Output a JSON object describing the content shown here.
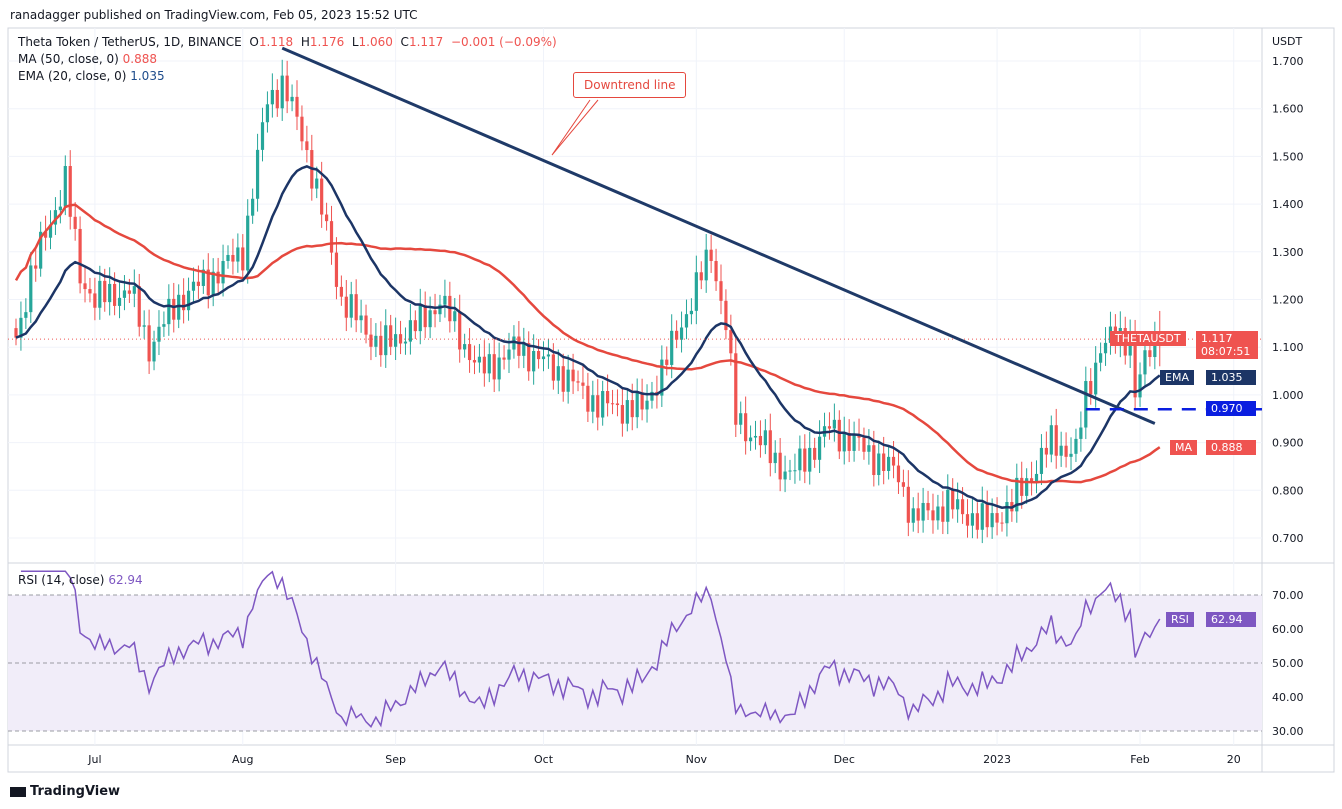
{
  "header": {
    "published": "ranadagger published on TradingView.com, Feb 05, 2023 15:52 UTC"
  },
  "legend": {
    "symbol": "Theta Token / TetherUS, 1D, BINANCE",
    "o_label": "O",
    "o": "1.118",
    "h_label": "H",
    "h": "1.176",
    "l_label": "L",
    "l": "1.060",
    "c_label": "C",
    "c": "1.117",
    "change": "−0.001 (−0.09%)",
    "ma_label": "MA (50, close, 0)",
    "ma_value": "0.888",
    "ema_label": "EMA (20, close, 0)",
    "ema_value": "1.035",
    "rsi_label": "RSI (14, close)",
    "rsi_value": "62.94"
  },
  "badges": {
    "symbol": "THETAUSDT",
    "price": "1.117",
    "countdown": "08:07:51",
    "ema": "EMA",
    "ema_value": "1.035",
    "level": "0.970",
    "ma": "MA",
    "ma_value": "0.888",
    "rsi": "RSI",
    "rsi_value": "62.94"
  },
  "annotation": "Downtrend line",
  "footer": {
    "brand": "TradingView"
  },
  "colors": {
    "up": "#26a69a",
    "down": "#ef5350",
    "ma": "#e5483e",
    "ema": "#1c3566",
    "trend": "#1f3a68",
    "rsi": "#7e57c2"
  },
  "chart_data": {
    "type": "candlestick",
    "title": "Theta Token / TetherUS, 1D, BINANCE",
    "y_unit": "USDT",
    "ylim": [
      0.65,
      1.75
    ],
    "y_ticks": [
      "0.700",
      "0.800",
      "0.900",
      "1.000",
      "1.100",
      "1.200",
      "1.300",
      "1.400",
      "1.500",
      "1.600",
      "1.700"
    ],
    "x_ticks": [
      {
        "label": "Jul",
        "day": 16
      },
      {
        "label": "Aug",
        "day": 46
      },
      {
        "label": "Sep",
        "day": 77
      },
      {
        "label": "Oct",
        "day": 107
      },
      {
        "label": "Nov",
        "day": 138
      },
      {
        "label": "Dec",
        "day": 168
      },
      {
        "label": "2023",
        "day": 199
      },
      {
        "label": "Feb",
        "day": 228
      },
      {
        "label": "20",
        "day": 247
      }
    ],
    "days": 233,
    "close_anchors": [
      [
        0,
        1.12
      ],
      [
        3,
        1.25
      ],
      [
        10,
        1.45
      ],
      [
        13,
        1.25
      ],
      [
        16,
        1.2
      ],
      [
        23,
        1.22
      ],
      [
        27,
        1.1
      ],
      [
        33,
        1.2
      ],
      [
        40,
        1.25
      ],
      [
        46,
        1.3
      ],
      [
        51,
        1.62
      ],
      [
        54,
        1.65
      ],
      [
        58,
        1.55
      ],
      [
        64,
        1.3
      ],
      [
        66,
        1.2
      ],
      [
        74,
        1.1
      ],
      [
        82,
        1.15
      ],
      [
        86,
        1.2
      ],
      [
        94,
        1.05
      ],
      [
        102,
        1.1
      ],
      [
        110,
        1.05
      ],
      [
        118,
        0.98
      ],
      [
        127,
        0.97
      ],
      [
        131,
        1.05
      ],
      [
        137,
        1.2
      ],
      [
        141,
        1.3
      ],
      [
        144,
        1.15
      ],
      [
        146,
        0.95
      ],
      [
        151,
        0.9
      ],
      [
        157,
        0.83
      ],
      [
        165,
        0.93
      ],
      [
        173,
        0.88
      ],
      [
        179,
        0.83
      ],
      [
        182,
        0.74
      ],
      [
        189,
        0.77
      ],
      [
        197,
        0.73
      ],
      [
        202,
        0.77
      ],
      [
        210,
        0.9
      ],
      [
        215,
        0.88
      ],
      [
        217,
        1.0
      ],
      [
        220,
        1.1
      ],
      [
        223,
        1.12
      ],
      [
        226,
        1.12
      ],
      [
        227,
        1.0
      ],
      [
        230,
        1.1
      ],
      [
        232,
        1.117
      ]
    ],
    "downtrend_line": {
      "from": [
        54,
        1.727
      ],
      "to": [
        231,
        0.94
      ]
    },
    "support_level": {
      "value": 0.97,
      "from_day": 217
    },
    "rsi": {
      "ylim": [
        28,
        78
      ],
      "ticks": [
        "30.00",
        "40.00",
        "50.00",
        "60.00",
        "70.00"
      ],
      "band": [
        30,
        70
      ]
    }
  }
}
